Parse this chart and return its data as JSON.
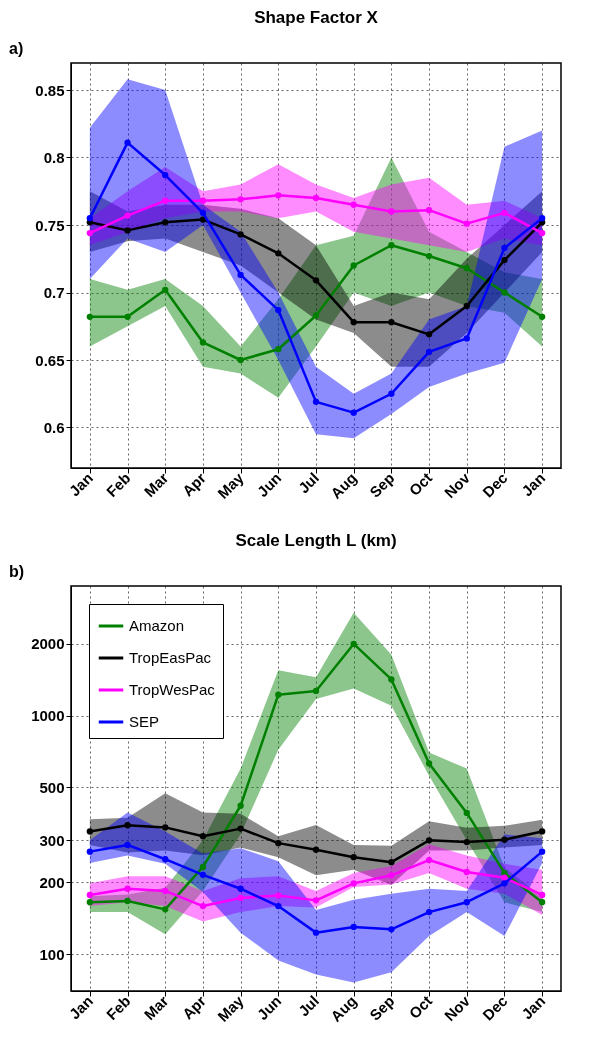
{
  "chart_data": [
    {
      "type": "line",
      "title": "Shape Factor X",
      "annotations": [
        "a)"
      ],
      "categories": [
        "Jan",
        "Feb",
        "Mar",
        "Apr",
        "May",
        "Jun",
        "Jul",
        "Aug",
        "Sep",
        "Oct",
        "Nov",
        "Dec",
        "Jan"
      ],
      "ylim": [
        0.57,
        0.87
      ],
      "yticks": [
        0.6,
        0.65,
        0.7,
        0.75,
        0.8,
        0.85
      ],
      "grid": true,
      "marker": "circle",
      "series": [
        {
          "color": "#008000",
          "values": [
            0.682,
            0.682,
            0.702,
            0.663,
            0.65,
            0.658,
            0.683,
            0.72,
            0.735,
            0.727,
            0.718,
            0.7,
            0.682
          ],
          "lower": [
            0.66,
            0.675,
            0.69,
            0.645,
            0.64,
            0.622,
            0.66,
            0.7,
            0.69,
            0.7,
            0.69,
            0.685,
            0.66
          ],
          "upper": [
            0.71,
            0.702,
            0.71,
            0.69,
            0.66,
            0.695,
            0.735,
            0.742,
            0.8,
            0.745,
            0.73,
            0.715,
            0.71
          ]
        },
        {
          "color": "#000000",
          "values": [
            0.752,
            0.746,
            0.752,
            0.754,
            0.743,
            0.729,
            0.709,
            0.678,
            0.678,
            0.669,
            0.69,
            0.724,
            0.752
          ],
          "lower": [
            0.73,
            0.738,
            0.74,
            0.73,
            0.72,
            0.7,
            0.68,
            0.67,
            0.645,
            0.645,
            0.67,
            0.7,
            0.73
          ],
          "upper": [
            0.775,
            0.76,
            0.765,
            0.765,
            0.762,
            0.755,
            0.735,
            0.69,
            0.7,
            0.695,
            0.725,
            0.75,
            0.775
          ]
        },
        {
          "color": "#ff00ff",
          "values": [
            0.744,
            0.757,
            0.768,
            0.768,
            0.769,
            0.772,
            0.77,
            0.765,
            0.76,
            0.761,
            0.751,
            0.759,
            0.744
          ],
          "lower": [
            0.735,
            0.745,
            0.755,
            0.76,
            0.76,
            0.755,
            0.76,
            0.745,
            0.74,
            0.735,
            0.73,
            0.74,
            0.735
          ],
          "upper": [
            0.755,
            0.775,
            0.793,
            0.775,
            0.78,
            0.795,
            0.78,
            0.77,
            0.78,
            0.785,
            0.765,
            0.768,
            0.755
          ]
        },
        {
          "color": "#0000ff",
          "values": [
            0.755,
            0.811,
            0.787,
            0.759,
            0.713,
            0.687,
            0.619,
            0.611,
            0.625,
            0.656,
            0.666,
            0.733,
            0.755
          ],
          "lower": [
            0.71,
            0.74,
            0.73,
            0.75,
            0.7,
            0.65,
            0.595,
            0.592,
            0.61,
            0.63,
            0.64,
            0.648,
            0.71
          ],
          "upper": [
            0.822,
            0.858,
            0.85,
            0.765,
            0.745,
            0.7,
            0.645,
            0.625,
            0.64,
            0.68,
            0.69,
            0.808,
            0.82
          ]
        }
      ]
    },
    {
      "type": "line",
      "title": "Scale Length L (km)",
      "annotations": [
        "b)"
      ],
      "categories": [
        "Jan",
        "Feb",
        "Mar",
        "Apr",
        "May",
        "Jun",
        "Jul",
        "Aug",
        "Sep",
        "Oct",
        "Nov",
        "Dec",
        "Jan"
      ],
      "log": true,
      "ylim": [
        70,
        3500
      ],
      "yticks": [
        100,
        200,
        300,
        500,
        1000,
        2000
      ],
      "grid": true,
      "legend": "top left",
      "marker": "circle",
      "series": [
        {
          "name": "Amazon",
          "color": "#008000",
          "values": [
            165,
            167,
            154,
            232,
            419,
            1225,
            1270,
            2000,
            1420,
            630,
            391,
            219,
            165
          ],
          "lower": [
            150,
            150,
            121,
            184,
            318,
            720,
            1175,
            1300,
            1100,
            560,
            300,
            165,
            150
          ],
          "upper": [
            175,
            178,
            190,
            300,
            600,
            1550,
            1450,
            2700,
            1800,
            700,
            600,
            230,
            175
          ]
        },
        {
          "name": "TropEasPac",
          "color": "#000000",
          "values": [
            327,
            347,
            340,
            312,
            336,
            292,
            274,
            255,
            243,
            300,
            295,
            302,
            327
          ],
          "lower": [
            287,
            267,
            272,
            260,
            280,
            255,
            214,
            226,
            195,
            272,
            272,
            280,
            287
          ],
          "upper": [
            368,
            373,
            473,
            393,
            388,
            312,
            348,
            287,
            285,
            361,
            339,
            345,
            366
          ]
        },
        {
          "name": "TropWesPac",
          "color": "#ff00ff",
          "values": [
            177,
            188,
            184,
            159,
            172,
            176,
            168,
            198,
            214,
            248,
            221,
            209,
            177
          ],
          "lower": [
            159,
            165,
            159,
            137,
            150,
            159,
            157,
            191,
            196,
            219,
            188,
            179,
            146
          ],
          "upper": [
            198,
            212,
            212,
            184,
            208,
            212,
            184,
            219,
            234,
            289,
            259,
            239,
            226
          ]
        },
        {
          "name": "SEP",
          "color": "#0000ff",
          "values": [
            269,
            287,
            250,
            215,
            188,
            159,
            123,
            130,
            127,
            150,
            165,
            198,
            269
          ],
          "lower": [
            241,
            259,
            239,
            182,
            123,
            94,
            82,
            76,
            84,
            119,
            150,
            119,
            241
          ],
          "upper": [
            300,
            393,
            327,
            264,
            278,
            245,
            153,
            169,
            179,
            188,
            184,
            318,
            306
          ]
        }
      ]
    }
  ]
}
